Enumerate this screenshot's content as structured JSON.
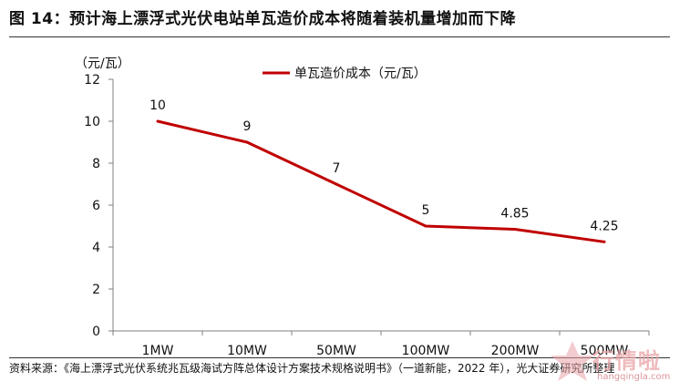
{
  "figure": {
    "title": "图 14：预计海上漂浮式光伏电站单瓦造价成本将随着装机量增加而下降",
    "source": "资料来源：《海上漂浮式光伏系统兆瓦级海试方阵总体设计方案技术规格说明书》（一道新能，2022 年），光大证券研究所整理"
  },
  "watermark": {
    "text": "行情啦",
    "url": "hangqingla.com",
    "color": "#e9a3a8"
  },
  "chart_data": {
    "type": "line",
    "categories": [
      "1MW",
      "10MW",
      "50MW",
      "100MW",
      "200MW",
      "500MW"
    ],
    "series": [
      {
        "name": "单瓦造价成本（元/瓦）",
        "values": [
          10,
          9,
          7,
          5,
          4.85,
          4.25
        ],
        "color": "#c00000"
      }
    ],
    "data_labels": [
      "10",
      "9",
      "7",
      "5",
      "4.85",
      "4.25"
    ],
    "ylabel": "（元/瓦）",
    "ylim": [
      0,
      12
    ],
    "yticks": [
      "0",
      "2",
      "4",
      "6",
      "8",
      "10",
      "12"
    ],
    "grid": false,
    "legend_position": "top-center"
  }
}
